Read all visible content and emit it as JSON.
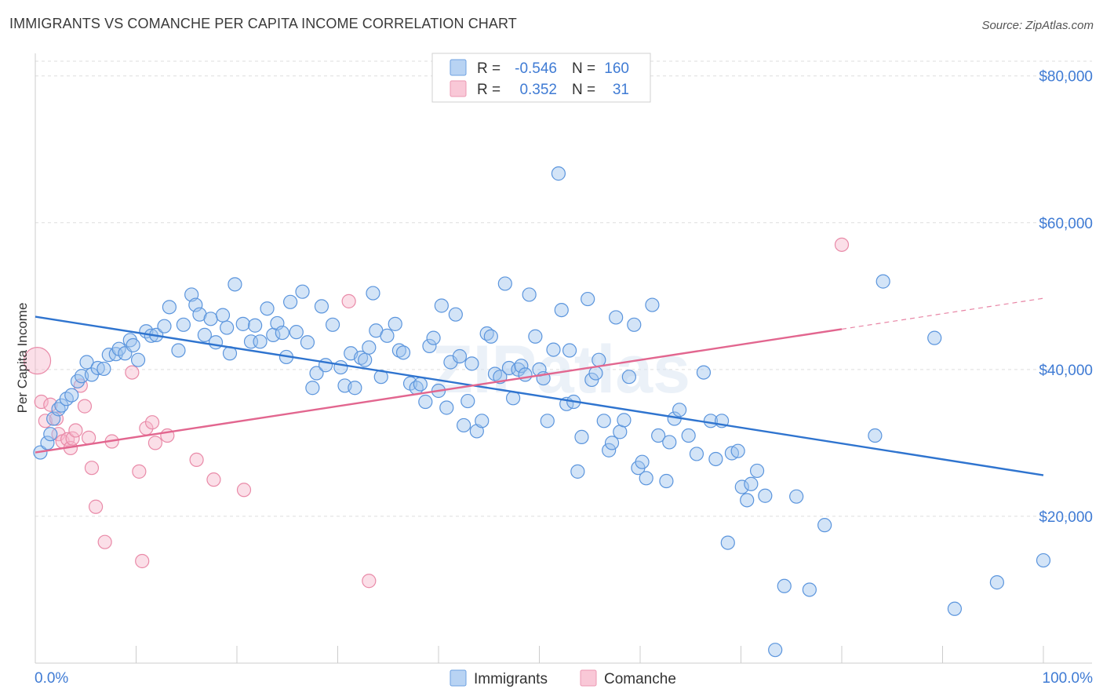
{
  "header": {
    "title": "IMMIGRANTS VS COMANCHE PER CAPITA INCOME CORRELATION CHART",
    "source": "Source: ZipAtlas.com"
  },
  "watermark": "ZIPatlas",
  "colors": {
    "immigrants_fill": "#9ec3ee",
    "immigrants_stroke": "#5b95dd",
    "immigrants_line": "#2f74cf",
    "comanche_fill": "#f6b8cb",
    "comanche_stroke": "#e98aa8",
    "comanche_line": "#e2668f",
    "tick_text": "#3f7bd4",
    "grid": "#dddddd"
  },
  "legend": {
    "rows": [
      {
        "r_label": "R =",
        "r_value": "-0.546",
        "n_label": "N =",
        "n_value": "160"
      },
      {
        "r_label": "R =",
        "r_value": "0.352",
        "n_label": "N =",
        "n_value": "31"
      }
    ],
    "bottom": [
      "Immigrants",
      "Comanche"
    ]
  },
  "chart_data": {
    "type": "scatter",
    "title": "IMMIGRANTS VS COMANCHE PER CAPITA INCOME CORRELATION CHART",
    "xlabel": "",
    "ylabel": "Per Capita Income",
    "xlim": [
      0,
      100
    ],
    "ylim": [
      0,
      82000
    ],
    "x_tick_labels": [
      "0.0%",
      "100.0%"
    ],
    "y_ticks": [
      20000,
      40000,
      60000,
      80000
    ],
    "y_tick_labels": [
      "$20,000",
      "$40,000",
      "$60,000",
      "$80,000"
    ],
    "series": [
      {
        "name": "Immigrants",
        "r": -0.546,
        "n": 160,
        "trend": {
          "x": [
            0,
            100
          ],
          "y": [
            47200,
            25600
          ],
          "dashed_from": null
        },
        "points": [
          [
            0.5,
            28700
          ],
          [
            1.2,
            30000
          ],
          [
            1.5,
            31200
          ],
          [
            1.8,
            33300
          ],
          [
            2.3,
            34600
          ],
          [
            2.6,
            35100
          ],
          [
            3.1,
            36000
          ],
          [
            3.6,
            36500
          ],
          [
            4.2,
            38400
          ],
          [
            4.6,
            39100
          ],
          [
            5.1,
            41000
          ],
          [
            5.6,
            39300
          ],
          [
            6.2,
            40200
          ],
          [
            6.8,
            40100
          ],
          [
            7.3,
            42000
          ],
          [
            8.0,
            42100
          ],
          [
            8.3,
            42800
          ],
          [
            8.9,
            42200
          ],
          [
            9.4,
            44000
          ],
          [
            9.7,
            43300
          ],
          [
            10.2,
            41300
          ],
          [
            11.0,
            45200
          ],
          [
            11.5,
            44600
          ],
          [
            12.0,
            44700
          ],
          [
            12.8,
            45900
          ],
          [
            13.3,
            48500
          ],
          [
            14.2,
            42600
          ],
          [
            14.7,
            46100
          ],
          [
            15.5,
            50200
          ],
          [
            15.9,
            48800
          ],
          [
            16.3,
            47500
          ],
          [
            16.8,
            44700
          ],
          [
            17.4,
            46900
          ],
          [
            17.9,
            43700
          ],
          [
            18.6,
            47400
          ],
          [
            19.0,
            45700
          ],
          [
            19.3,
            42200
          ],
          [
            19.8,
            51600
          ],
          [
            20.6,
            46200
          ],
          [
            21.4,
            43800
          ],
          [
            21.8,
            46000
          ],
          [
            22.3,
            43800
          ],
          [
            23.0,
            48300
          ],
          [
            23.6,
            44700
          ],
          [
            24.0,
            46300
          ],
          [
            24.5,
            45000
          ],
          [
            24.9,
            41700
          ],
          [
            25.3,
            49200
          ],
          [
            25.9,
            45100
          ],
          [
            26.5,
            50600
          ],
          [
            27.0,
            43700
          ],
          [
            27.5,
            37500
          ],
          [
            27.9,
            39500
          ],
          [
            28.4,
            48600
          ],
          [
            28.8,
            40600
          ],
          [
            29.5,
            46100
          ],
          [
            30.3,
            40300
          ],
          [
            30.7,
            37800
          ],
          [
            31.3,
            42200
          ],
          [
            31.7,
            37500
          ],
          [
            32.3,
            41600
          ],
          [
            32.7,
            41300
          ],
          [
            33.1,
            43000
          ],
          [
            33.5,
            50400
          ],
          [
            33.8,
            45300
          ],
          [
            34.3,
            39000
          ],
          [
            34.9,
            44600
          ],
          [
            35.7,
            46200
          ],
          [
            36.1,
            42600
          ],
          [
            36.5,
            42300
          ],
          [
            37.2,
            38100
          ],
          [
            37.8,
            37500
          ],
          [
            38.2,
            38000
          ],
          [
            38.7,
            35600
          ],
          [
            39.1,
            43200
          ],
          [
            39.5,
            44300
          ],
          [
            40.0,
            37100
          ],
          [
            40.3,
            48700
          ],
          [
            40.8,
            34800
          ],
          [
            41.2,
            41000
          ],
          [
            41.7,
            47500
          ],
          [
            42.1,
            41800
          ],
          [
            42.5,
            32400
          ],
          [
            42.9,
            35700
          ],
          [
            43.3,
            40800
          ],
          [
            43.8,
            31600
          ],
          [
            44.3,
            33000
          ],
          [
            44.8,
            44900
          ],
          [
            45.2,
            44500
          ],
          [
            45.6,
            39400
          ],
          [
            46.1,
            39000
          ],
          [
            46.6,
            51700
          ],
          [
            47.0,
            40200
          ],
          [
            47.4,
            36100
          ],
          [
            47.9,
            40000
          ],
          [
            48.2,
            40500
          ],
          [
            48.6,
            39300
          ],
          [
            49.0,
            50200
          ],
          [
            49.6,
            44500
          ],
          [
            50.0,
            40000
          ],
          [
            50.4,
            38800
          ],
          [
            50.8,
            33000
          ],
          [
            51.4,
            42700
          ],
          [
            51.9,
            66700
          ],
          [
            52.2,
            48100
          ],
          [
            52.7,
            35300
          ],
          [
            53.0,
            42600
          ],
          [
            53.4,
            35600
          ],
          [
            53.8,
            26100
          ],
          [
            54.2,
            30800
          ],
          [
            54.8,
            49600
          ],
          [
            55.2,
            38600
          ],
          [
            55.6,
            39500
          ],
          [
            55.9,
            41300
          ],
          [
            56.4,
            33000
          ],
          [
            56.9,
            29000
          ],
          [
            57.2,
            30000
          ],
          [
            57.6,
            47100
          ],
          [
            58.0,
            31500
          ],
          [
            58.4,
            33100
          ],
          [
            58.9,
            39000
          ],
          [
            59.4,
            46100
          ],
          [
            59.8,
            26600
          ],
          [
            60.2,
            27400
          ],
          [
            60.6,
            25200
          ],
          [
            61.2,
            48800
          ],
          [
            61.8,
            31000
          ],
          [
            62.6,
            24800
          ],
          [
            62.9,
            30100
          ],
          [
            63.4,
            33300
          ],
          [
            63.9,
            34500
          ],
          [
            64.8,
            31000
          ],
          [
            65.6,
            28500
          ],
          [
            66.3,
            39600
          ],
          [
            67.0,
            33000
          ],
          [
            67.5,
            27800
          ],
          [
            68.1,
            33000
          ],
          [
            68.7,
            16400
          ],
          [
            69.1,
            28600
          ],
          [
            69.7,
            28900
          ],
          [
            70.1,
            24000
          ],
          [
            70.6,
            22200
          ],
          [
            71.0,
            24400
          ],
          [
            71.6,
            26200
          ],
          [
            72.4,
            22800
          ],
          [
            73.4,
            1800
          ],
          [
            74.3,
            10500
          ],
          [
            75.5,
            22700
          ],
          [
            76.8,
            10000
          ],
          [
            78.3,
            18800
          ],
          [
            83.3,
            31000
          ],
          [
            84.1,
            52000
          ],
          [
            89.2,
            44300
          ],
          [
            91.2,
            7400
          ],
          [
            95.4,
            11000
          ],
          [
            100.0,
            14000
          ]
        ]
      },
      {
        "name": "Comanche",
        "r": 0.352,
        "n": 31,
        "trend": {
          "x": [
            0,
            100
          ],
          "y": [
            28700,
            49700
          ],
          "dashed_from": 80
        },
        "points": [
          [
            0.2,
            41200
          ],
          [
            0.6,
            35600
          ],
          [
            1.0,
            33000
          ],
          [
            1.5,
            35200
          ],
          [
            2.1,
            33300
          ],
          [
            2.3,
            31200
          ],
          [
            2.7,
            30200
          ],
          [
            3.2,
            30500
          ],
          [
            3.5,
            29300
          ],
          [
            3.7,
            30600
          ],
          [
            4.0,
            31700
          ],
          [
            4.5,
            37800
          ],
          [
            4.9,
            35000
          ],
          [
            5.3,
            30700
          ],
          [
            5.6,
            26600
          ],
          [
            6.0,
            21300
          ],
          [
            6.9,
            16500
          ],
          [
            7.6,
            30200
          ],
          [
            9.6,
            39600
          ],
          [
            10.3,
            26100
          ],
          [
            10.6,
            13900
          ],
          [
            11.0,
            32000
          ],
          [
            11.6,
            32800
          ],
          [
            11.9,
            30000
          ],
          [
            13.1,
            31000
          ],
          [
            16.0,
            27700
          ],
          [
            17.7,
            25000
          ],
          [
            20.7,
            23600
          ],
          [
            31.1,
            49300
          ],
          [
            33.1,
            11200
          ],
          [
            80.0,
            57000
          ]
        ]
      }
    ]
  }
}
